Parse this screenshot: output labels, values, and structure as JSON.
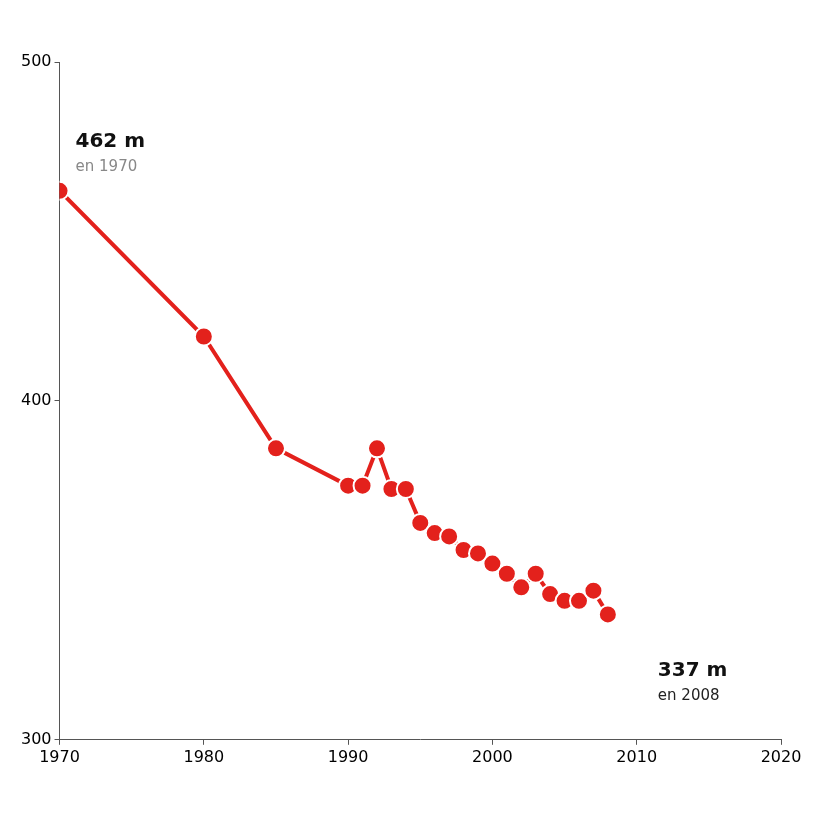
{
  "chart_data": {
    "type": "line",
    "x": [
      1970,
      1980,
      1985,
      1990,
      1991,
      1992,
      1993,
      1994,
      1995,
      1996,
      1997,
      1998,
      1999,
      2000,
      2001,
      2002,
      2003,
      2004,
      2005,
      2006,
      2007,
      2008
    ],
    "values": [
      462,
      419,
      386,
      375,
      375,
      386,
      374,
      374,
      364,
      361,
      360,
      356,
      355,
      352,
      349,
      345,
      349,
      343,
      341,
      341,
      344,
      337
    ],
    "color": "#e3211c",
    "marker": "circle",
    "line_style": "solid",
    "xlim": [
      1970,
      2020
    ],
    "xticks": [
      1970,
      1980,
      1990,
      2000,
      2010,
      2020
    ],
    "ylim": [
      300,
      500
    ],
    "yticks": [
      300,
      400,
      500
    ],
    "grid": false,
    "annotations": [
      {
        "text": "462 m",
        "subtext": "en 1970"
      },
      {
        "text": "337 m",
        "subtext": "en 2008"
      }
    ]
  }
}
